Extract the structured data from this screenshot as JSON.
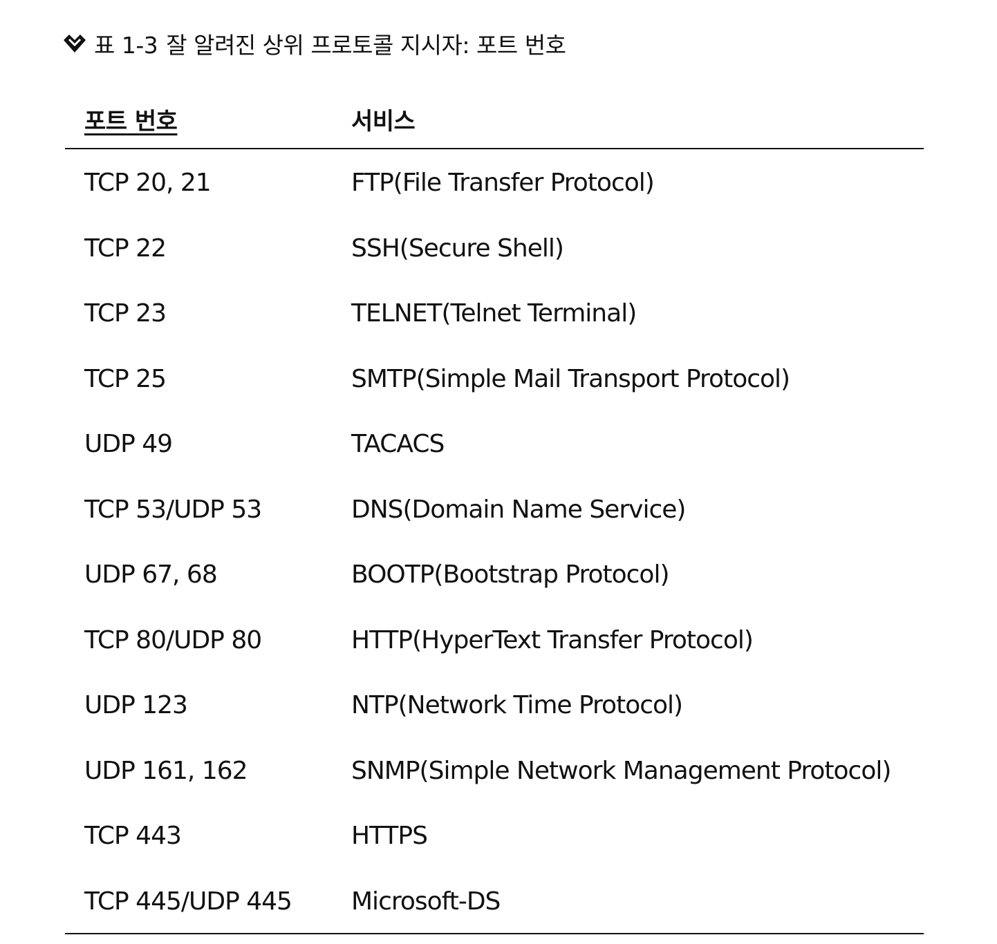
{
  "caption": {
    "marker_icon": "diamond-check-icon",
    "label": "표 1-3",
    "title": "잘 알려진 상위 프로토콜 지시자: 포트 번호"
  },
  "table": {
    "headers": [
      "포트 번호",
      "서비스"
    ],
    "rows": [
      {
        "port": "TCP 20, 21",
        "service": "FTP(File Transfer Protocol)"
      },
      {
        "port": "TCP 22",
        "service": "SSH(Secure Shell)"
      },
      {
        "port": "TCP 23",
        "service": "TELNET(Telnet Terminal)"
      },
      {
        "port": "TCP 25",
        "service": "SMTP(Simple Mail Transport Protocol)"
      },
      {
        "port": "UDP 49",
        "service": "TACACS"
      },
      {
        "port": "TCP 53/UDP 53",
        "service": "DNS(Domain Name Service)"
      },
      {
        "port": "UDP 67, 68",
        "service": "BOOTP(Bootstrap Protocol)"
      },
      {
        "port": "TCP 80/UDP 80",
        "service": "HTTP(HyperText Transfer Protocol)"
      },
      {
        "port": "UDP 123",
        "service": "NTP(Network Time Protocol)"
      },
      {
        "port": "UDP 161, 162",
        "service": "SNMP(Simple Network Management Protocol)"
      },
      {
        "port": "TCP 443",
        "service": "HTTPS"
      },
      {
        "port": "TCP 445/UDP 445",
        "service": "Microsoft-DS"
      }
    ]
  }
}
